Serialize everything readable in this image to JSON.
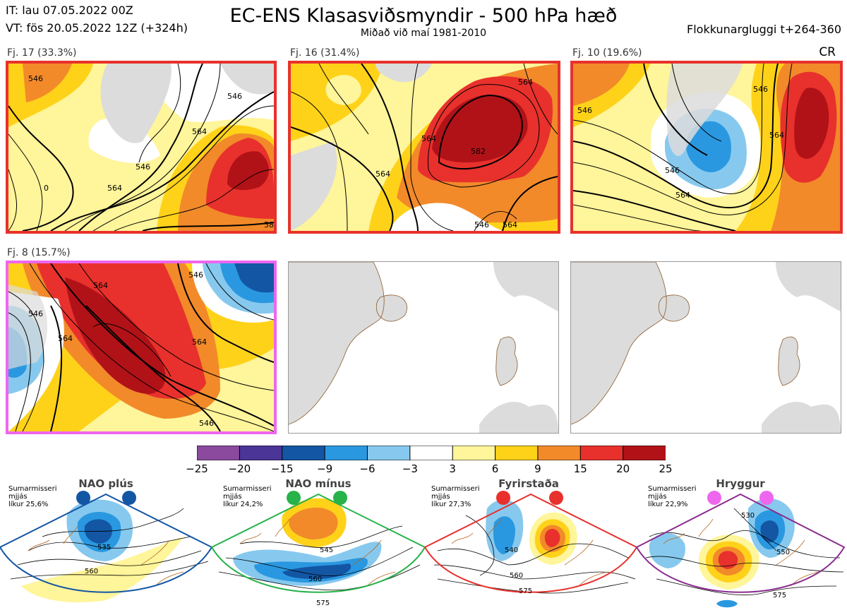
{
  "header": {
    "init_time": "IT: lau 07.05.2022 00Z",
    "valid_time": "VT: fös 20.05.2022 12Z  (+324h)",
    "title": "EC-ENS Klasasviðsmyndir - 500 hPa hæð",
    "subtitle": "Miðað við maí 1981-2010",
    "window": "Flokkunargluggi t+264-360",
    "corner_code": "CR"
  },
  "panels": [
    {
      "label": "Fj. 17 (33.3%)",
      "members": 17,
      "percent": 33.3,
      "border_color": "#e8312c",
      "contour_labels": [
        "546",
        "546",
        "546",
        "564",
        "564",
        "0",
        "58"
      ]
    },
    {
      "label": "Fj. 16 (31.4%)",
      "members": 16,
      "percent": 31.4,
      "border_color": "#e8312c",
      "contour_labels": [
        "564",
        "564",
        "564",
        "582",
        "546",
        "564"
      ]
    },
    {
      "label": "Fj. 10 (19.6%)",
      "members": 10,
      "percent": 19.6,
      "border_color": "#e8312c",
      "contour_labels": [
        "546",
        "546",
        "564",
        "564",
        "546"
      ]
    },
    {
      "label": "Fj. 8 (15.7%)",
      "members": 8,
      "percent": 15.7,
      "border_color": "#ee66ee",
      "contour_labels": [
        "546",
        "546",
        "564",
        "564",
        "564",
        "546"
      ]
    },
    {
      "label": "",
      "empty": true
    },
    {
      "label": "",
      "empty": true
    }
  ],
  "colorbar": {
    "ticks": [
      "−25",
      "−20",
      "−15",
      "−9",
      "−6",
      "−3",
      "3",
      "6",
      "9",
      "15",
      "20",
      "25"
    ],
    "colors": [
      "#8b4a9e",
      "#4b3597",
      "#1356a4",
      "#2a98e0",
      "#87c9ee",
      "#ffffff",
      "#fff59a",
      "#ffd21a",
      "#f28a2a",
      "#e8312c",
      "#b11218"
    ]
  },
  "regimes": [
    {
      "name": "NAO plús",
      "season": "Sumarmisseri",
      "band": "mjjás",
      "likelihood": "líkur 25,6%",
      "color": "#1356a4",
      "contours": [
        "535",
        "560"
      ]
    },
    {
      "name": "NAO mínus",
      "season": "Sumarmisseri",
      "band": "mjjás",
      "likelihood": "líkur 24,2%",
      "color": "#27b24a",
      "contours": [
        "545",
        "560",
        "575"
      ]
    },
    {
      "name": "Fyrirstaða",
      "season": "Sumarmisseri",
      "band": "mjjás",
      "likelihood": "líkur 27,3%",
      "color": "#e8312c",
      "contours": [
        "540",
        "560",
        "575"
      ]
    },
    {
      "name": "Hryggur",
      "season": "Sumarmisseri",
      "band": "mjjás",
      "likelihood": "líkur 22,9%",
      "color": "#ee66ee",
      "contours": [
        "530",
        "550",
        "575"
      ]
    }
  ]
}
